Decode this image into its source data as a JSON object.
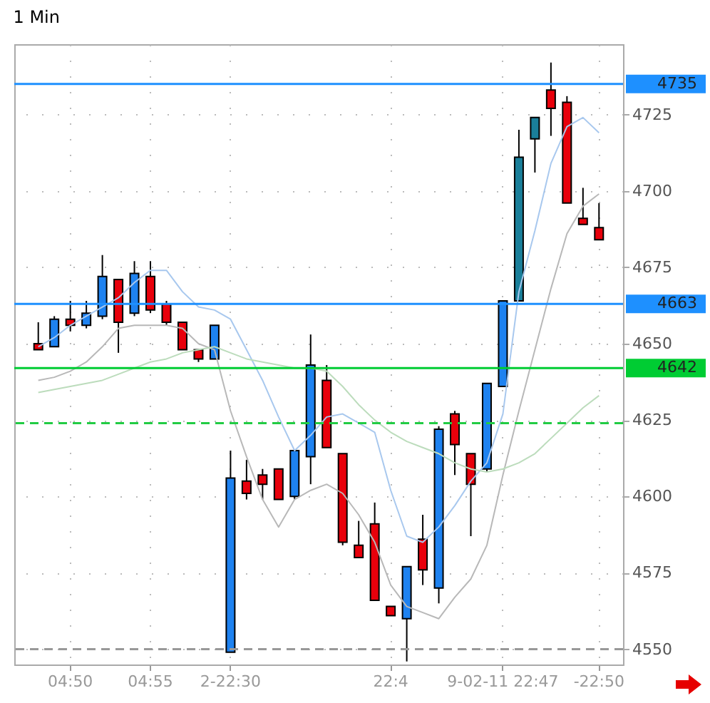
{
  "chart_data": {
    "type": "candlestick",
    "title": "1 Min",
    "categories": [
      null,
      null,
      "04:50",
      null,
      null,
      null,
      null,
      "04:55",
      null,
      null,
      null,
      null,
      "2-22:30",
      null,
      null,
      null,
      null,
      null,
      null,
      null,
      null,
      null,
      "22:4",
      null,
      null,
      null,
      null,
      null,
      null,
      "9-02-11 22:47",
      null,
      null,
      null,
      null,
      null,
      "-22:50"
    ],
    "ohlc": [
      [
        4650,
        4657,
        4648,
        4648
      ],
      [
        4649,
        4659,
        4649,
        4658
      ],
      [
        4658,
        4664,
        4654,
        4656
      ],
      [
        4656,
        4664,
        4655,
        4660
      ],
      [
        4659,
        4679,
        4658,
        4672
      ],
      [
        4671,
        4671,
        4647,
        4657
      ],
      [
        4660,
        4677,
        4659,
        4673
      ],
      [
        4672,
        4677,
        4660,
        4661
      ],
      [
        4663,
        4664,
        4656,
        4657
      ],
      [
        4657,
        4657,
        4648,
        4648
      ],
      [
        4648,
        4648,
        4644,
        4645
      ],
      [
        4645,
        4656,
        4645,
        4656
      ],
      [
        4549,
        4615,
        4549,
        4606
      ],
      [
        4605,
        4612,
        4599,
        4601
      ],
      [
        4607,
        4609,
        4599,
        4604
      ],
      [
        4609,
        4609,
        4599,
        4599
      ],
      [
        4600,
        4615,
        4599,
        4615
      ],
      [
        4613,
        4653,
        4604,
        4643
      ],
      [
        4638,
        4643,
        4616,
        4616
      ],
      [
        4614,
        4614,
        4584,
        4585
      ],
      [
        4584,
        4592,
        4580,
        4580
      ],
      [
        4591,
        4598,
        4566,
        4566
      ],
      [
        4564,
        4564,
        4561,
        4561
      ],
      [
        4560,
        4577,
        4546,
        4577
      ],
      [
        4586,
        4594,
        4571,
        4576
      ],
      [
        4570,
        4623,
        4565,
        4622
      ],
      [
        4627,
        4628,
        4607,
        4617
      ],
      [
        4614,
        4614,
        4587,
        4604
      ],
      [
        4609,
        4637,
        4608,
        4637
      ],
      [
        4636,
        4664,
        4636,
        4664
      ],
      [
        4664,
        4720,
        4664,
        4711
      ],
      [
        4717,
        4724,
        4706,
        4724
      ],
      [
        4733,
        4742,
        4718,
        4727
      ],
      [
        4729,
        4731,
        4696,
        4696
      ],
      [
        4691,
        4701,
        4689,
        4689
      ],
      [
        4688,
        4696,
        4684,
        4684
      ]
    ],
    "colors": [
      "#e8000b",
      "#1e82f0",
      "#e8000b",
      "#1e82f0",
      "#1e82f0",
      "#e8000b",
      "#1e82f0",
      "#e8000b",
      "#e8000b",
      "#e8000b",
      "#e8000b",
      "#1e82f0",
      "#1e82f0",
      "#e8000b",
      "#e8000b",
      "#e8000b",
      "#1e82f0",
      "#1e82f0",
      "#e8000b",
      "#e8000b",
      "#e8000b",
      "#e8000b",
      "#e8000b",
      "#1e82f0",
      "#e8000b",
      "#1e82f0",
      "#e8000b",
      "#e8000b",
      "#1e82f0",
      "#1e82f0",
      "#1a7f9a",
      "#1a7f9a",
      "#e8000b",
      "#e8000b",
      "#e8000b",
      "#e8000b"
    ],
    "series": [
      {
        "type": "line",
        "color": "#a8c8ee",
        "values": [
          4649,
          4652,
          4656,
          4659,
          4662,
          4665,
          4670,
          4674,
          4674,
          4667,
          4662,
          4661,
          4658,
          4648,
          4638,
          4626,
          4615,
          4620,
          4626,
          4627,
          4624,
          4621,
          4602,
          4587,
          4585,
          4590,
          4597,
          4605,
          4611,
          4627,
          4667,
          4687,
          4709,
          4721,
          4724,
          4719
        ]
      },
      {
        "type": "line",
        "color": "#b8b8b8",
        "values": [
          4638,
          4639,
          4641,
          4644,
          4649,
          4655,
          4656,
          4656,
          4656,
          4655,
          4650,
          4648,
          4628,
          4613,
          4599,
          4590,
          4599,
          4602,
          4604,
          4601,
          4594,
          4585,
          4571,
          4564,
          4562,
          4560,
          4567,
          4573,
          4584,
          4607,
          4628,
          4648,
          4668,
          4686,
          4695,
          4699
        ]
      },
      {
        "type": "line",
        "color": "#bcdcbc",
        "values": [
          4634,
          4635,
          4636,
          4637,
          4638,
          4640,
          4642,
          4644,
          4645,
          4647,
          4648,
          4649,
          4647,
          4645,
          4644,
          4643,
          4642,
          4642,
          4641,
          4636,
          4630,
          4625,
          4621,
          4618,
          4616,
          4614,
          4611,
          4609,
          4608,
          4609,
          4611,
          4614,
          4619,
          4624,
          4629,
          4633
        ]
      }
    ],
    "ylim": [
      4545,
      4748
    ],
    "yticks": [
      4550,
      4575,
      4600,
      4625,
      4650,
      4675,
      4700,
      4725
    ],
    "grid": true,
    "ref_lines": [
      {
        "axis": "y",
        "value": 4735,
        "label": "4735",
        "color": "#1e90ff"
      },
      {
        "axis": "y",
        "value": 4663,
        "label": "4663",
        "color": "#1e90ff"
      },
      {
        "axis": "y",
        "value": 4642,
        "label": "4642",
        "color": "#00cc33"
      },
      {
        "axis": "y",
        "value": 4624,
        "color": "#22cc44",
        "line_style": "dashed"
      },
      {
        "axis": "y",
        "value": 4550,
        "color": "#999999",
        "line_style": "dashed"
      }
    ]
  }
}
